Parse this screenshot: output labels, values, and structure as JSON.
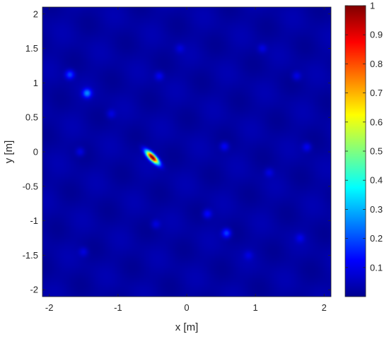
{
  "chart_data": {
    "type": "heatmap",
    "title": "",
    "xlabel": "x [m]",
    "ylabel": "y [m]",
    "xlim": [
      -2.1,
      2.1
    ],
    "ylim": [
      -2.1,
      2.1
    ],
    "xticks": [
      "-2",
      "-1",
      "0",
      "1",
      "2"
    ],
    "xtick_values": [
      -2,
      -1,
      0,
      1,
      2
    ],
    "yticks": [
      "2",
      "1.5",
      "1",
      "0.5",
      "0",
      "-0.5",
      "-1",
      "-1.5",
      "-2"
    ],
    "ytick_values": [
      2,
      1.5,
      1,
      0.5,
      0,
      -0.5,
      -1,
      -1.5,
      -2
    ],
    "colorbar": {
      "colormap": "jet",
      "range": [
        0,
        1
      ],
      "ticks": [
        "1",
        "0.9",
        "0.8",
        "0.7",
        "0.6",
        "0.5",
        "0.4",
        "0.3",
        "0.2",
        "0.1"
      ],
      "tick_values": [
        1,
        0.9,
        0.8,
        0.7,
        0.6,
        0.5,
        0.4,
        0.3,
        0.2,
        0.1
      ]
    },
    "background_level": 0.02,
    "grid": false,
    "peaks": [
      {
        "x": -0.5,
        "y": -0.08,
        "value": 1.0
      },
      {
        "x": -1.45,
        "y": 0.85,
        "value": 0.22
      },
      {
        "x": -1.7,
        "y": 1.12,
        "value": 0.16
      },
      {
        "x": 0.58,
        "y": -1.18,
        "value": 0.16
      },
      {
        "x": 0.3,
        "y": -0.9,
        "value": 0.1
      },
      {
        "x": -0.4,
        "y": 1.1,
        "value": 0.08
      },
      {
        "x": 0.55,
        "y": 0.08,
        "value": 0.09
      },
      {
        "x": -1.55,
        "y": 0.0,
        "value": 0.07
      },
      {
        "x": 1.75,
        "y": 0.07,
        "value": 0.08
      },
      {
        "x": -1.5,
        "y": -1.45,
        "value": 0.06
      },
      {
        "x": 1.65,
        "y": -1.25,
        "value": 0.06
      },
      {
        "x": 1.1,
        "y": 1.5,
        "value": 0.06
      },
      {
        "x": 1.6,
        "y": 1.1,
        "value": 0.07
      },
      {
        "x": -0.45,
        "y": -1.05,
        "value": 0.06
      },
      {
        "x": -1.1,
        "y": 0.55,
        "value": 0.06
      },
      {
        "x": 0.9,
        "y": -1.5,
        "value": 0.05
      },
      {
        "x": 1.2,
        "y": -0.3,
        "value": 0.06
      },
      {
        "x": -0.1,
        "y": 1.5,
        "value": 0.05
      }
    ]
  }
}
